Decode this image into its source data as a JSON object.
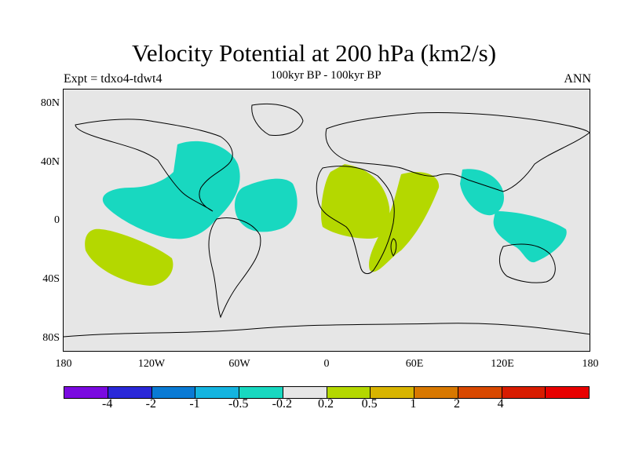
{
  "title": "Velocity Potential at 200 hPa (km2/s)",
  "subtitle": "100kyr BP - 100kyr BP",
  "left_label": "Expt = tdxo4-tdwt4",
  "right_label": "ANN",
  "lat_ticks": [
    "80N",
    "40N",
    "0",
    "40S",
    "80S"
  ],
  "lon_ticks": [
    "180",
    "120W",
    "60W",
    "0",
    "60E",
    "120E",
    "180"
  ],
  "colorbar": {
    "colors": [
      "#7a0ae0",
      "#2a28d8",
      "#0a7ad4",
      "#14b4e0",
      "#18d8c0",
      "#e6e6e6",
      "#b4d800",
      "#d8b400",
      "#d87800",
      "#d84800",
      "#d81c00",
      "#e80000"
    ],
    "labels": [
      "-4",
      "-2",
      "-1",
      "-0.5",
      "-0.2",
      "0.2",
      "0.5",
      "1",
      "2",
      "4"
    ]
  },
  "colors": {
    "negative_fill": "#18d8c0",
    "positive_fill": "#b4d800",
    "background": "#e6e6e6"
  }
}
